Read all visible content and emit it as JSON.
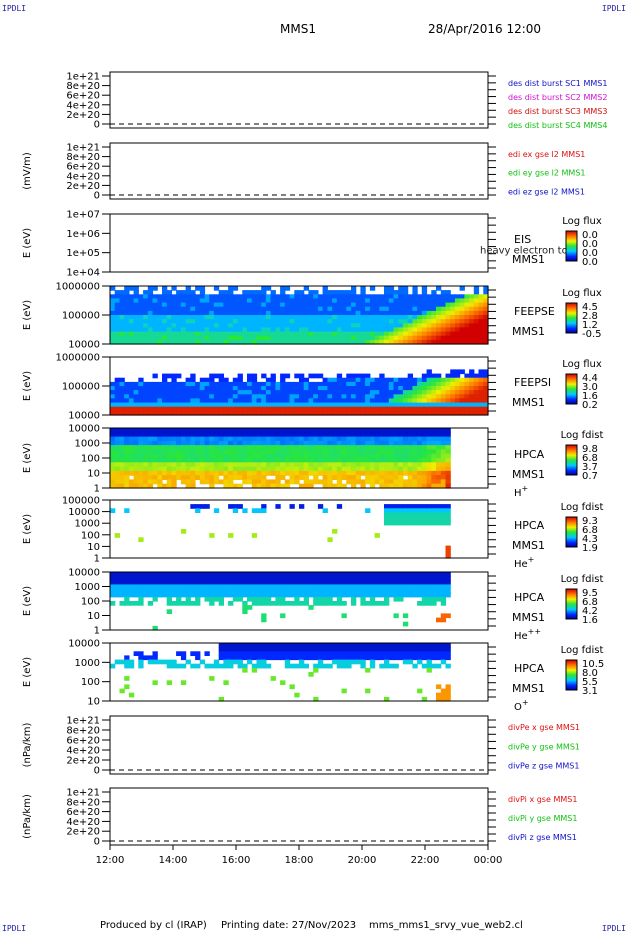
{
  "corners": {
    "tl": "IPDLI",
    "tr": "IPDLI",
    "bl": "IPDLI",
    "br": "IPDLI"
  },
  "header": {
    "spacecraft": "MMS1",
    "datetime": "28/Apr/2016 12:00"
  },
  "footer": {
    "produced": "Produced by cl (IRAP)",
    "printing": "Printing date: 27/Nov/2023",
    "script": "mms_mms1_srvy_vue_web2.cl"
  },
  "colors": {
    "mms1": "#1010c8",
    "mms2": "#d010d0",
    "mms3": "#d01010",
    "mms4": "#10c010",
    "x": "#e01010",
    "y": "#10c010",
    "z": "#1010c8"
  },
  "chart_data": [
    {
      "type": "line",
      "ylabel": "",
      "yticks": [
        "1e+21",
        "8e+20",
        "6e+20",
        "4e+20",
        "2e+20",
        "0"
      ],
      "legend": [
        {
          "text": "des dist burst SC1 MMS1",
          "color": "mms1"
        },
        {
          "text": "des dist burst SC2 MMS2",
          "color": "mms2"
        },
        {
          "text": "des dist burst SC3 MMS3",
          "color": "mms3"
        },
        {
          "text": "des dist burst SC4 MMS4",
          "color": "mms4"
        }
      ]
    },
    {
      "type": "line",
      "ylabel": "(mV/m)",
      "yticks": [
        "1e+21",
        "8e+20",
        "6e+20",
        "4e+20",
        "2e+20",
        "0"
      ],
      "legend": [
        {
          "text": "edi ex gse l2 MMS1",
          "color": "x"
        },
        {
          "text": "edi ey gse l2 MMS1",
          "color": "y"
        },
        {
          "text": "edi ez gse l2 MMS1",
          "color": "z"
        }
      ]
    },
    {
      "type": "heatmap",
      "ylabel": "E (eV)",
      "yticks": [
        "1e+07",
        "1e+06",
        "1e+05",
        "1e+04"
      ],
      "side": [
        "EIS",
        "MMS1"
      ],
      "overlay": "heavy electron to",
      "cbtitle": "Log flux",
      "cbticks": [
        "0.0",
        "0.0",
        "0.0",
        "0.0"
      ]
    },
    {
      "type": "heatmap",
      "ylabel": "E (eV)",
      "yticks": [
        "1000000",
        "100000",
        "10000"
      ],
      "side": [
        "FEEPSE",
        "MMS1"
      ],
      "cbtitle": "Log flux",
      "cbticks": [
        "4.5",
        "2.8",
        "1.2",
        "-0.5"
      ]
    },
    {
      "type": "heatmap",
      "ylabel": "E (eV)",
      "yticks": [
        "1000000",
        "100000",
        "10000"
      ],
      "side": [
        "FEEPSI",
        "MMS1"
      ],
      "cbtitle": "Log flux",
      "cbticks": [
        "4.4",
        "3.0",
        "1.6",
        "0.2"
      ]
    },
    {
      "type": "heatmap",
      "ylabel": "E (eV)",
      "yticks": [
        "10000",
        "1000",
        "100",
        "10",
        "1"
      ],
      "side": [
        "HPCA",
        "MMS1"
      ],
      "species": "H",
      "charge": "+",
      "cbtitle": "Log fdist",
      "cbticks": [
        "9.8",
        "6.8",
        "3.7",
        "0.7"
      ]
    },
    {
      "type": "heatmap",
      "ylabel": "E (eV)",
      "yticks": [
        "100000",
        "10000",
        "1000",
        "100",
        "10",
        "1"
      ],
      "side": [
        "HPCA",
        "MMS1"
      ],
      "species": "He",
      "charge": "+",
      "cbtitle": "Log fdist",
      "cbticks": [
        "9.3",
        "6.8",
        "4.3",
        "1.9"
      ]
    },
    {
      "type": "heatmap",
      "ylabel": "E (eV)",
      "yticks": [
        "10000",
        "1000",
        "100",
        "10",
        "1"
      ],
      "side": [
        "HPCA",
        "MMS1"
      ],
      "species": "He",
      "charge": "++",
      "cbtitle": "Log fdist",
      "cbticks": [
        "9.5",
        "6.8",
        "4.2",
        "1.6"
      ]
    },
    {
      "type": "heatmap",
      "ylabel": "E (eV)",
      "yticks": [
        "10000",
        "1000",
        "100",
        "10"
      ],
      "side": [
        "HPCA",
        "MMS1"
      ],
      "species": "O",
      "charge": "+",
      "cbtitle": "Log fdist",
      "cbticks": [
        "10.5",
        "8.0",
        "5.5",
        "3.1"
      ]
    },
    {
      "type": "line",
      "ylabel": "(nPa/km)",
      "yticks": [
        "1e+21",
        "8e+20",
        "6e+20",
        "4e+20",
        "2e+20",
        "0"
      ],
      "legend": [
        {
          "text": "divPe x gse MMS1",
          "color": "x"
        },
        {
          "text": "divPe y gse MMS1",
          "color": "y"
        },
        {
          "text": "divPe z gse MMS1",
          "color": "z"
        }
      ]
    },
    {
      "type": "line",
      "ylabel": "(nPa/km)",
      "yticks": [
        "1e+21",
        "8e+20",
        "6e+20",
        "4e+20",
        "2e+20",
        "0"
      ],
      "legend": [
        {
          "text": "divPi x gse MMS1",
          "color": "x"
        },
        {
          "text": "divPi y gse MMS1",
          "color": "y"
        },
        {
          "text": "divPi z gse MMS1",
          "color": "z"
        }
      ]
    }
  ],
  "xaxis": {
    "ticks": [
      "12:00",
      "14:00",
      "16:00",
      "18:00",
      "20:00",
      "22:00",
      "00:00"
    ]
  }
}
